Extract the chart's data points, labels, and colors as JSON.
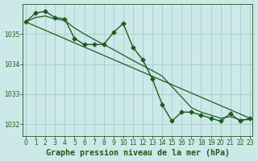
{
  "background_color": "#cce8e8",
  "grid_color": "#aad0d0",
  "line_color": "#1e5c1e",
  "title": "Graphe pression niveau de la mer (hPa)",
  "tick_fontsize": 5.5,
  "title_fontsize": 7.2,
  "xlim": [
    -0.3,
    23.3
  ],
  "ylim": [
    1031.6,
    1036.0
  ],
  "yticks": [
    1032,
    1033,
    1034,
    1035
  ],
  "xticks": [
    0,
    1,
    2,
    3,
    4,
    5,
    6,
    7,
    8,
    9,
    10,
    11,
    12,
    13,
    14,
    15,
    16,
    17,
    18,
    19,
    20,
    21,
    22,
    23
  ],
  "series": [
    {
      "x": [
        0,
        1,
        2,
        3,
        4,
        5,
        6,
        7,
        8,
        9,
        10,
        11,
        12,
        13,
        14,
        15,
        16,
        17,
        18,
        19,
        20,
        21,
        22,
        23
      ],
      "y": [
        1035.4,
        1035.7,
        1035.75,
        1035.55,
        1035.5,
        1034.85,
        1034.65,
        1034.65,
        1034.65,
        1035.05,
        1035.35,
        1034.55,
        1034.15,
        1033.5,
        1032.65,
        1032.1,
        1032.4,
        1032.4,
        1032.3,
        1032.2,
        1032.1,
        1032.35,
        1032.1,
        1032.2
      ],
      "marker": "D",
      "markersize": 2.5,
      "linewidth": 1.0
    },
    {
      "x": [
        0,
        1,
        2,
        3,
        4,
        5,
        6,
        7,
        8,
        9,
        10,
        11,
        12,
        13,
        14,
        15,
        16,
        17,
        18,
        19,
        20,
        21,
        22,
        23
      ],
      "y": [
        1035.4,
        1035.55,
        1035.6,
        1035.5,
        1035.45,
        1035.2,
        1035.0,
        1034.82,
        1034.65,
        1034.48,
        1034.3,
        1034.12,
        1033.95,
        1033.78,
        1033.6,
        1033.25,
        1032.9,
        1032.55,
        1032.4,
        1032.3,
        1032.2,
        1032.25,
        1032.15,
        1032.15
      ],
      "marker": null,
      "markersize": 0,
      "linewidth": 0.9
    },
    {
      "x": [
        0,
        23
      ],
      "y": [
        1035.4,
        1032.2
      ],
      "marker": null,
      "markersize": 0,
      "linewidth": 0.9
    }
  ]
}
